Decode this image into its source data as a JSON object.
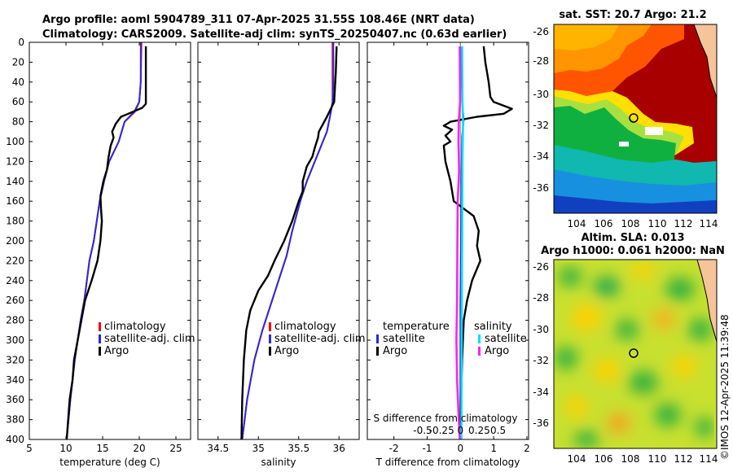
{
  "title": {
    "line1": "Argo profile: aoml 5904789_311 07-Apr-2025 31.55S 108.46E (NRT data)",
    "line2": "Climatology: CARS2009. Satellite-adj clim: synTS_20250407.nc (0.63d earlier)"
  },
  "colors": {
    "climatology": "#ff0000",
    "satellite": "#2a2ae0",
    "argo": "#000000",
    "cyan": "#00e0ff",
    "magenta": "#ff22ee"
  },
  "depth_ticks": [
    0,
    20,
    40,
    60,
    80,
    100,
    120,
    140,
    160,
    180,
    200,
    220,
    240,
    260,
    280,
    300,
    320,
    340,
    360,
    380,
    400
  ],
  "chart_data": [
    {
      "type": "line",
      "id": "temperature",
      "xlabel": "temperature (deg C)",
      "ylabel": "depth",
      "xlim": [
        5,
        27
      ],
      "ylim": [
        400,
        0
      ],
      "xticks": [
        5,
        10,
        15,
        20,
        25
      ],
      "legend": [
        "climatology",
        "satellite-adj. clim",
        "Argo"
      ],
      "series": [
        {
          "name": "climatology",
          "points": [
            [
              20.3,
              0
            ],
            [
              20.2,
              40
            ],
            [
              20.0,
              60
            ],
            [
              19.4,
              70
            ],
            [
              18.0,
              80
            ],
            [
              17.2,
              100
            ],
            [
              15.9,
              120
            ],
            [
              15.2,
              140
            ],
            [
              14.6,
              160
            ],
            [
              14.2,
              180
            ],
            [
              13.8,
              200
            ],
            [
              13.2,
              220
            ],
            [
              12.5,
              260
            ],
            [
              12.0,
              280
            ],
            [
              11.2,
              320
            ],
            [
              10.6,
              360
            ],
            [
              10.1,
              400
            ]
          ]
        },
        {
          "name": "satellite-adj. clim",
          "points": [
            [
              20.2,
              0
            ],
            [
              20.2,
              40
            ],
            [
              20.0,
              60
            ],
            [
              19.3,
              70
            ],
            [
              18.0,
              80
            ],
            [
              17.2,
              100
            ],
            [
              15.9,
              120
            ],
            [
              15.2,
              140
            ],
            [
              14.6,
              160
            ],
            [
              14.2,
              180
            ],
            [
              13.8,
              200
            ],
            [
              13.2,
              220
            ],
            [
              12.5,
              260
            ],
            [
              12.0,
              280
            ],
            [
              11.2,
              320
            ],
            [
              10.6,
              360
            ],
            [
              10.1,
              400
            ]
          ]
        },
        {
          "name": "Argo",
          "points": [
            [
              20.9,
              4
            ],
            [
              20.9,
              20
            ],
            [
              20.9,
              40
            ],
            [
              20.9,
              62
            ],
            [
              20.4,
              66
            ],
            [
              18.5,
              72
            ],
            [
              17.5,
              75
            ],
            [
              16.8,
              82
            ],
            [
              16.3,
              90
            ],
            [
              16.5,
              96
            ],
            [
              16.1,
              104
            ],
            [
              15.8,
              116
            ],
            [
              15.6,
              128
            ],
            [
              15.1,
              140
            ],
            [
              14.7,
              155
            ],
            [
              14.8,
              170
            ],
            [
              14.9,
              180
            ],
            [
              14.7,
              200
            ],
            [
              14.3,
              220
            ],
            [
              13.5,
              240
            ],
            [
              12.6,
              260
            ],
            [
              12.1,
              280
            ],
            [
              11.6,
              300
            ],
            [
              11.1,
              320
            ],
            [
              10.9,
              340
            ],
            [
              10.5,
              360
            ],
            [
              10.3,
              380
            ],
            [
              10.1,
              400
            ]
          ]
        }
      ]
    },
    {
      "type": "line",
      "id": "salinity",
      "xlabel": "salinity",
      "ylabel": "depth",
      "xlim": [
        34.25,
        36.25
      ],
      "ylim": [
        400,
        0
      ],
      "xticks": [
        34.5,
        35,
        35.5,
        36
      ],
      "legend": [
        "climatology",
        "satellite-adj. clim",
        "Argo"
      ],
      "series": [
        {
          "name": "climatology",
          "points": [
            [
              35.92,
              0
            ],
            [
              35.92,
              40
            ],
            [
              35.92,
              60
            ],
            [
              35.9,
              70
            ],
            [
              35.85,
              90
            ],
            [
              35.8,
              100
            ],
            [
              35.75,
              110
            ],
            [
              35.6,
              140
            ],
            [
              35.52,
              160
            ],
            [
              35.42,
              190
            ],
            [
              35.35,
              215
            ],
            [
              35.25,
              240
            ],
            [
              35.15,
              265
            ],
            [
              35.05,
              290
            ],
            [
              34.95,
              320
            ],
            [
              34.86,
              360
            ],
            [
              34.8,
              400
            ]
          ]
        },
        {
          "name": "satellite-adj. clim",
          "points": [
            [
              35.93,
              0
            ],
            [
              35.93,
              40
            ],
            [
              35.92,
              60
            ],
            [
              35.9,
              70
            ],
            [
              35.85,
              90
            ],
            [
              35.8,
              100
            ],
            [
              35.75,
              110
            ],
            [
              35.6,
              140
            ],
            [
              35.52,
              160
            ],
            [
              35.42,
              190
            ],
            [
              35.35,
              215
            ],
            [
              35.25,
              240
            ],
            [
              35.15,
              265
            ],
            [
              35.05,
              290
            ],
            [
              34.95,
              320
            ],
            [
              34.86,
              360
            ],
            [
              34.8,
              400
            ]
          ]
        },
        {
          "name": "Argo",
          "points": [
            [
              35.97,
              4
            ],
            [
              35.96,
              30
            ],
            [
              35.94,
              60
            ],
            [
              35.85,
              75
            ],
            [
              35.75,
              90
            ],
            [
              35.74,
              96
            ],
            [
              35.7,
              106
            ],
            [
              35.67,
              115
            ],
            [
              35.6,
              125
            ],
            [
              35.55,
              140
            ],
            [
              35.55,
              150
            ],
            [
              35.5,
              160
            ],
            [
              35.42,
              180
            ],
            [
              35.32,
              200
            ],
            [
              35.2,
              220
            ],
            [
              35.12,
              235
            ],
            [
              35.0,
              250
            ],
            [
              34.9,
              270
            ],
            [
              34.85,
              290
            ],
            [
              34.82,
              320
            ],
            [
              34.8,
              360
            ],
            [
              34.79,
              400
            ]
          ]
        }
      ]
    },
    {
      "type": "line",
      "id": "difference",
      "xlabel": "T difference from climatology",
      "top_label": "S difference from climatology",
      "xlim": [
        -2.8,
        2.05
      ],
      "ylim": [
        400,
        0
      ],
      "xticks": [
        -2,
        -1,
        0,
        1,
        2
      ],
      "s_ticks": [
        -0.5,
        -0.25,
        0,
        0.25,
        0.5
      ],
      "legend_left_title": "temperature",
      "legend_right_title": "salinity",
      "legend_left": [
        "satellite",
        "Argo"
      ],
      "legend_right": [
        "satellite",
        "Argo"
      ],
      "series": [
        {
          "name": "temperature satellite",
          "points": [
            [
              0.02,
              4
            ],
            [
              0.05,
              60
            ],
            [
              0.1,
              78
            ],
            [
              0.05,
              95
            ],
            [
              0.03,
              140
            ],
            [
              0.02,
              200
            ],
            [
              0.0,
              260
            ],
            [
              0.0,
              320
            ],
            [
              0.0,
              400
            ]
          ]
        },
        {
          "name": "temperature Argo",
          "points": [
            [
              0.7,
              4
            ],
            [
              0.75,
              20
            ],
            [
              0.85,
              40
            ],
            [
              0.9,
              55
            ],
            [
              1.0,
              60
            ],
            [
              1.55,
              67
            ],
            [
              1.3,
              72
            ],
            [
              0.5,
              75
            ],
            [
              -0.3,
              80
            ],
            [
              -0.5,
              84
            ],
            [
              -0.25,
              88
            ],
            [
              -0.45,
              94
            ],
            [
              -0.3,
              100
            ],
            [
              -0.5,
              104
            ],
            [
              -0.45,
              120
            ],
            [
              -0.3,
              140
            ],
            [
              -0.2,
              160
            ],
            [
              0.4,
              175
            ],
            [
              0.55,
              190
            ],
            [
              0.5,
              205
            ],
            [
              0.6,
              220
            ],
            [
              0.35,
              240
            ],
            [
              0.2,
              260
            ],
            [
              0.1,
              280
            ],
            [
              0.05,
              320
            ],
            [
              0.02,
              360
            ],
            [
              0.0,
              400
            ]
          ]
        },
        {
          "name": "salinity satellite",
          "points": [
            [
              0.05,
              4
            ],
            [
              0.06,
              60
            ],
            [
              0.08,
              80
            ],
            [
              0.06,
              120
            ],
            [
              0.05,
              200
            ],
            [
              0.04,
              280
            ],
            [
              0.03,
              400
            ]
          ]
        },
        {
          "name": "salinity Argo",
          "points": [
            [
              -0.02,
              4
            ],
            [
              -0.01,
              60
            ],
            [
              -0.05,
              80
            ],
            [
              -0.06,
              100
            ],
            [
              -0.04,
              130
            ],
            [
              -0.08,
              160
            ],
            [
              -0.09,
              200
            ],
            [
              -0.1,
              260
            ],
            [
              -0.12,
              300
            ],
            [
              -0.1,
              340
            ],
            [
              -0.05,
              380
            ],
            [
              -0.02,
              400
            ]
          ]
        }
      ]
    }
  ],
  "maps": [
    {
      "id": "sst",
      "title": "sat. SST: 20.7 Argo: 21.2",
      "lat_ticks": [
        "-26",
        "-28",
        "-30",
        "-32",
        "-34",
        "-36"
      ],
      "lon_ticks": [
        "104",
        "106",
        "108",
        "110",
        "112",
        "114"
      ],
      "point": "31.55S 108.46E"
    },
    {
      "id": "sla",
      "title1": "Altim. SLA: 0.013",
      "title2": "Argo h1000: 0.061 h2000: NaN",
      "lat_ticks": [
        "-26",
        "-28",
        "-30",
        "-32",
        "-34",
        "-36"
      ],
      "lon_ticks": [
        "104",
        "106",
        "108",
        "110",
        "112",
        "114"
      ],
      "point": "31.55S 108.46E"
    }
  ],
  "timestamp": "©IMOS 12-Apr-2025 11:39:48"
}
